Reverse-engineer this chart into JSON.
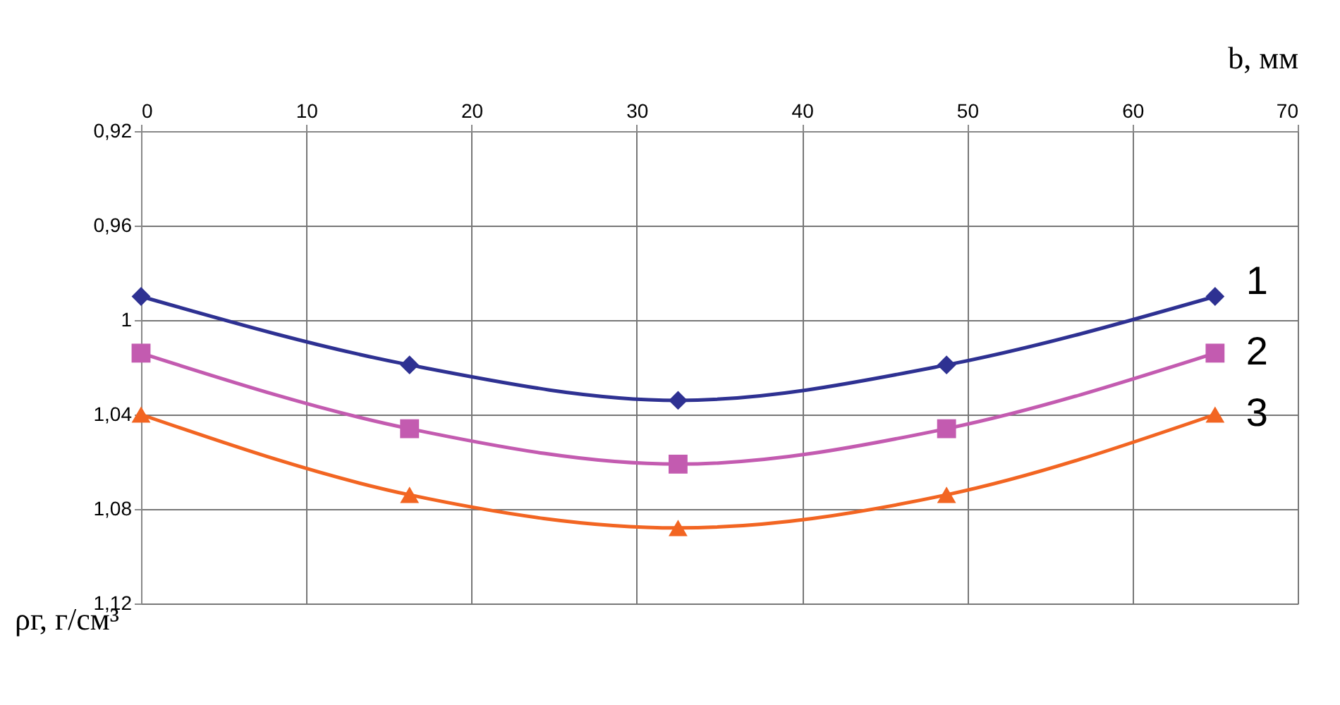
{
  "chart_data": {
    "type": "line",
    "xlabel": "b, мм",
    "ylabel": "ρг, г/см³",
    "x": [
      0,
      16.25,
      32.5,
      48.75,
      65
    ],
    "xlim": [
      0,
      70
    ],
    "xticks": [
      0,
      10,
      20,
      30,
      40,
      50,
      60,
      70
    ],
    "ylim": [
      1.12,
      0.92
    ],
    "yticks": [
      {
        "value": 0.92,
        "label": "0,92"
      },
      {
        "value": 0.96,
        "label": "0,96"
      },
      {
        "value": 1,
        "label": "1"
      },
      {
        "value": 1.04,
        "label": "1,04"
      },
      {
        "value": 1.08,
        "label": "1,08"
      },
      {
        "value": 1.12,
        "label": "1,12"
      }
    ],
    "grid": true,
    "line_style": "solid",
    "series": [
      {
        "name": "1",
        "color": "#2e3192",
        "marker": "diamond",
        "values": [
          0.99,
          1.019,
          1.034,
          1.019,
          0.99
        ]
      },
      {
        "name": "2",
        "color": "#c35bb0",
        "marker": "square",
        "values": [
          1.014,
          1.046,
          1.061,
          1.046,
          1.014
        ]
      },
      {
        "name": "3",
        "color": "#f26522",
        "marker": "triangle",
        "values": [
          1.04,
          1.074,
          1.088,
          1.074,
          1.04
        ]
      }
    ]
  }
}
